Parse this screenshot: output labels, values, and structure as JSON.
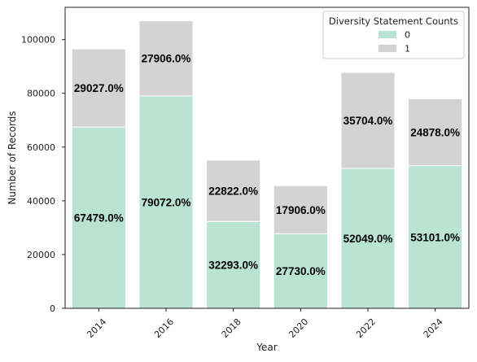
{
  "chart_data": {
    "type": "bar",
    "stacked": true,
    "categories": [
      "2014",
      "2016",
      "2018",
      "2020",
      "2022",
      "2024"
    ],
    "series": [
      {
        "name": "0",
        "color": "#b9e3d2",
        "values": [
          67479,
          79072,
          32293,
          27730,
          52049,
          53101
        ],
        "labels": [
          "67479.0%",
          "79072.0%",
          "32293.0%",
          "27730.0%",
          "52049.0%",
          "53101.0%"
        ]
      },
      {
        "name": "1",
        "color": "#d3d3d3",
        "values": [
          29027,
          27906,
          22822,
          17906,
          35704,
          24878
        ],
        "labels": [
          "29027.0%",
          "27906.0%",
          "22822.0%",
          "17906.0%",
          "35704.0%",
          "24878.0%"
        ]
      }
    ],
    "xlabel": "Year",
    "ylabel": "Number of Records",
    "ylim": [
      0,
      112000
    ],
    "yticks": [
      0,
      20000,
      40000,
      60000,
      80000,
      100000
    ],
    "grid": false,
    "legend": {
      "title": "Diversity Statement Counts",
      "placement": "top-right"
    }
  }
}
